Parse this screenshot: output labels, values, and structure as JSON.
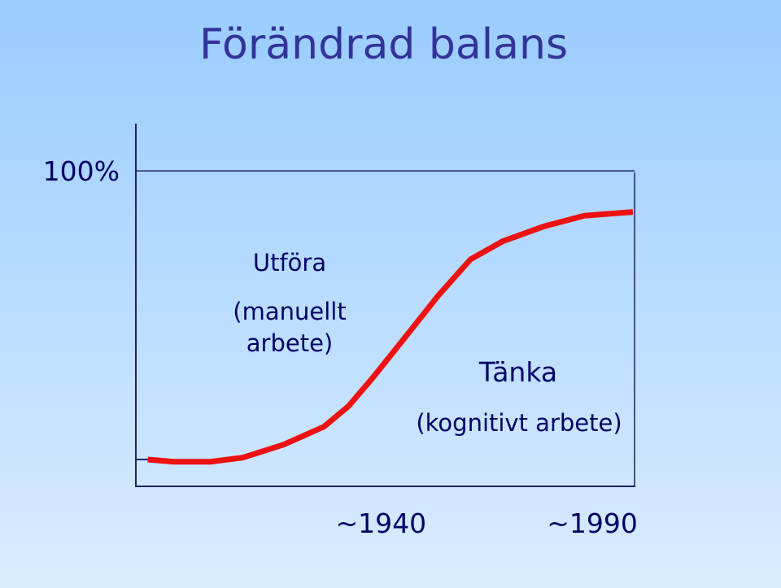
{
  "chart_data": {
    "type": "line",
    "title": "Förändrad balans",
    "x": [
      1884.8,
      1891.0,
      1899.6,
      1907.3,
      1916.9,
      1926.5,
      1932.3,
      1938.1,
      1945.8,
      1953.5,
      1961.2,
      1968.8,
      1978.5,
      1988.1,
      1999.6
    ],
    "series": [
      {
        "color": "#ee1111",
        "values": [
          8.5,
          7.8,
          7.8,
          9.1,
          13.2,
          18.9,
          25.4,
          34.5,
          47.4,
          60.4,
          72.0,
          77.7,
          82.4,
          85.8,
          87.0
        ]
      }
    ],
    "xlim": [
      1882,
      2000
    ],
    "ylim": [
      0,
      115
    ],
    "xticks": [
      {
        "value": 1940,
        "label": "~1940"
      },
      {
        "value": 1990,
        "label": "~1990"
      }
    ],
    "yticks": [
      {
        "value": 100,
        "label": "100%"
      }
    ],
    "grid": true,
    "annotations": [
      "Utföra",
      "(manuellt",
      "arbete)",
      "Tänka",
      "(kognitivt arbete)"
    ]
  }
}
